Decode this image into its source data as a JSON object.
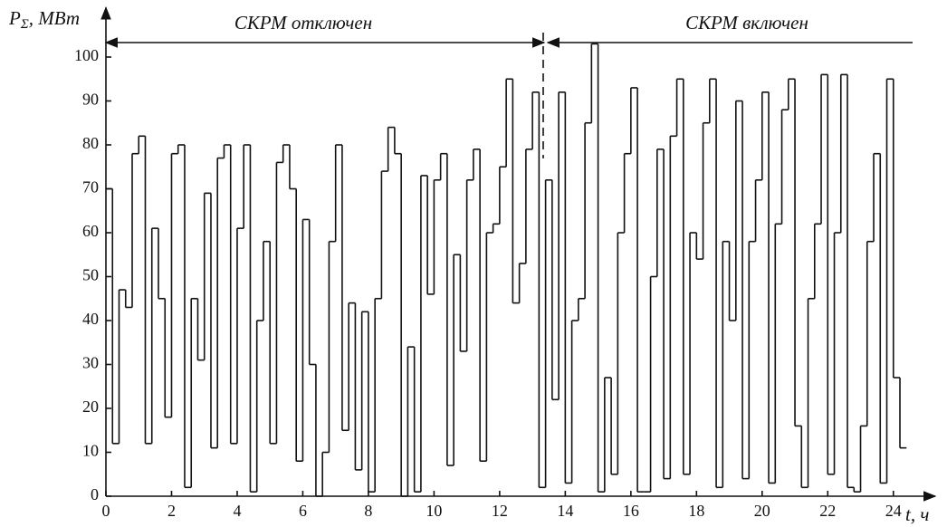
{
  "chart_data": {
    "type": "line",
    "step": true,
    "ylabel": {
      "main": "P",
      "sub": "Σ",
      "unit": ", МВт"
    },
    "xlabel": "t, ч",
    "annotations": [
      "СКРМ отключен",
      "СКРМ включен"
    ],
    "xlim": [
      0,
      25
    ],
    "ylim": [
      0,
      110
    ],
    "xticks": [
      0,
      2,
      4,
      6,
      8,
      10,
      12,
      14,
      16,
      18,
      20,
      22,
      24
    ],
    "yticks": [
      0,
      10,
      20,
      30,
      40,
      50,
      60,
      70,
      80,
      90,
      100
    ],
    "grid": false,
    "color": "#111111",
    "x": [
      0,
      0.2,
      0.4,
      0.6,
      0.8,
      1,
      1.2,
      1.4,
      1.6,
      1.8,
      2,
      2.2,
      2.4,
      2.6,
      2.8,
      3,
      3.2,
      3.4,
      3.6,
      3.8,
      4,
      4.2,
      4.4,
      4.6,
      4.8,
      5,
      5.2,
      5.4,
      5.6,
      5.8,
      6,
      6.2,
      6.4,
      6.6,
      6.8,
      7,
      7.2,
      7.4,
      7.6,
      7.8,
      8,
      8.2,
      8.4,
      8.6,
      8.8,
      9,
      9.2,
      9.4,
      9.6,
      9.8,
      10,
      10.2,
      10.4,
      10.6,
      10.8,
      11,
      11.2,
      11.4,
      11.6,
      11.8,
      12,
      12.2,
      12.4,
      12.6,
      12.8,
      13,
      13.2,
      13.4,
      13.6,
      13.8,
      14,
      14.2,
      14.4,
      14.6,
      14.8,
      15,
      15.2,
      15.4,
      15.6,
      15.8,
      16,
      16.2,
      16.4,
      16.6,
      16.8,
      17,
      17.2,
      17.4,
      17.6,
      17.8,
      18,
      18.2,
      18.4,
      18.6,
      18.8,
      19,
      19.2,
      19.4,
      19.6,
      19.8,
      20,
      20.2,
      20.4,
      20.6,
      20.8,
      21,
      21.2,
      21.4,
      21.6,
      21.8,
      22,
      22.2,
      22.4,
      22.6,
      22.8,
      23,
      23.2,
      23.4,
      23.6,
      23.8,
      24,
      24.2
    ],
    "values": [
      70,
      12,
      47,
      43,
      78,
      82,
      12,
      61,
      45,
      18,
      78,
      80,
      2,
      45,
      31,
      69,
      11,
      77,
      80,
      12,
      61,
      80,
      1,
      40,
      58,
      12,
      76,
      80,
      70,
      8,
      63,
      30,
      0,
      10,
      58,
      80,
      15,
      44,
      6,
      42,
      1,
      45,
      74,
      84,
      78,
      0,
      34,
      1,
      73,
      46,
      72,
      78,
      7,
      55,
      33,
      72,
      79,
      8,
      60,
      62,
      75,
      95,
      44,
      53,
      79,
      92,
      2,
      72,
      22,
      92,
      3,
      40,
      45,
      85,
      103,
      1,
      27,
      5,
      60,
      78,
      93,
      1,
      1,
      50,
      79,
      4,
      82,
      95,
      5,
      60,
      54,
      85,
      95,
      2,
      58,
      40,
      90,
      4,
      58,
      72,
      92,
      3,
      62,
      88,
      95,
      16,
      2,
      45,
      62,
      96,
      5,
      60,
      96,
      2,
      1,
      16,
      58,
      78,
      3,
      95,
      27,
      11
    ]
  }
}
